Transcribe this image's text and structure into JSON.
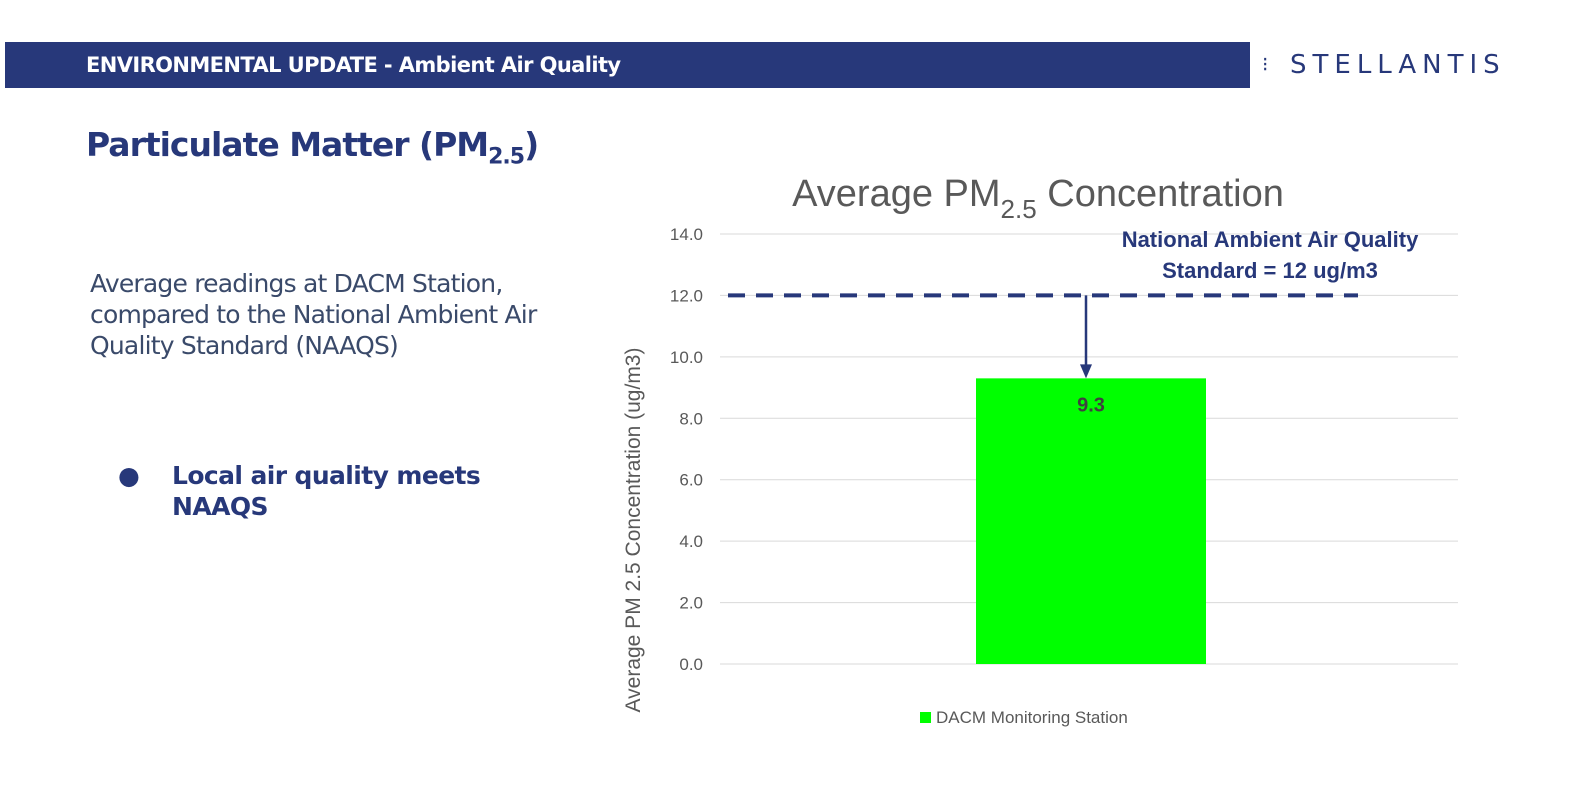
{
  "header": {
    "title": "ENVIRONMENTAL UPDATE - Ambient Air Quality",
    "logo": "STELLANTIS"
  },
  "page_title": {
    "main": "Particulate Matter (PM",
    "sub": "2.5",
    "close": ")"
  },
  "description": "Average readings at DACM Station, compared to the National Ambient Air Quality Standard (NAAQS)",
  "bullets": [
    {
      "marker": "●",
      "text": "Local air quality meets NAAQS"
    }
  ],
  "colors": {
    "brand": "#27387a",
    "bar": "#00ff00",
    "axis_text": "#595959"
  },
  "chart_data": {
    "type": "bar",
    "title": "Average PM",
    "title_sub": "2.5",
    "title_end": " Concentration",
    "ylabel": "Average PM 2.5 Concentration (ug/m3)",
    "xlabel": "",
    "ylim": [
      0,
      14
    ],
    "yticks": [
      "0.0",
      "2.0",
      "4.0",
      "6.0",
      "8.0",
      "10.0",
      "12.0",
      "14.0"
    ],
    "categories": [
      "DACM Monitoring Station"
    ],
    "series": [
      {
        "name": "DACM Monitoring Station",
        "values": [
          9.3
        ],
        "labels": [
          "9.3"
        ]
      }
    ],
    "grid": true,
    "legend": "bottom",
    "reference_line": {
      "value": 12,
      "label_line1": "National Ambient Air Quality",
      "label_line2": "Standard = 12 ug/m3"
    }
  }
}
